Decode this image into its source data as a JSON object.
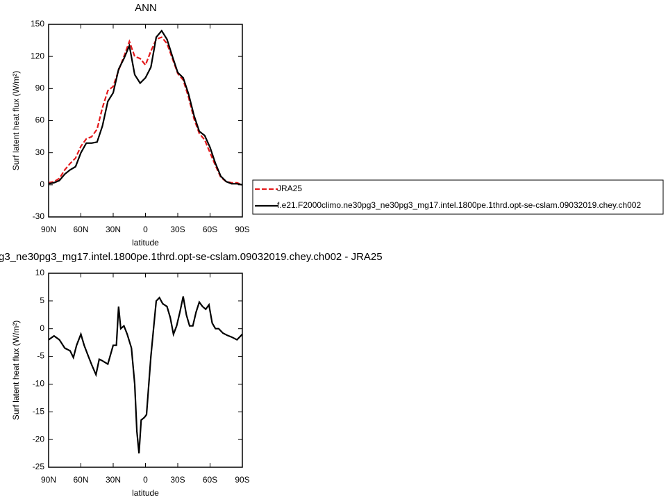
{
  "chart_data": [
    {
      "type": "line",
      "title": "ANN",
      "xlabel": "latitude",
      "ylabel": "Surf latent heat flux (W/m²)",
      "x": [
        90,
        85,
        80,
        75,
        70,
        65,
        60,
        55,
        50,
        45,
        40,
        35,
        30,
        25,
        20,
        15,
        10,
        5,
        0,
        -5,
        -10,
        -15,
        -20,
        -25,
        -30,
        -35,
        -40,
        -45,
        -50,
        -55,
        -60,
        -65,
        -70,
        -75,
        -80,
        -85,
        -90
      ],
      "series": [
        {
          "name": "JRA25",
          "color": "#e41a1c",
          "dashed": true,
          "values": [
            2,
            3,
            6,
            14,
            20,
            25,
            36,
            43,
            45,
            52,
            72,
            88,
            92,
            107,
            120,
            134,
            120,
            118,
            112,
            125,
            136,
            138,
            132,
            118,
            104,
            98,
            82,
            62,
            48,
            42,
            30,
            18,
            7,
            3,
            2,
            2,
            0
          ]
        },
        {
          "name": "f.e21.F2000climo.ne30pg3_ne30pg3_mg17.intel.1800pe.1thrd.opt-se-cslam.09032019.chey.ch002",
          "color": "#000000",
          "dashed": false,
          "values": [
            1,
            2,
            4,
            10,
            14,
            17,
            30,
            39,
            39,
            40,
            55,
            78,
            86,
            108,
            118,
            130,
            103,
            95,
            100,
            110,
            138,
            144,
            136,
            120,
            105,
            100,
            85,
            65,
            50,
            46,
            35,
            20,
            8,
            3,
            1,
            1,
            0
          ]
        }
      ],
      "xlim": [
        90,
        -90
      ],
      "xticks": [
        {
          "value": 90,
          "label": "90N"
        },
        {
          "value": 60,
          "label": "60N"
        },
        {
          "value": 30,
          "label": "30N"
        },
        0,
        {
          "value": -30,
          "label": "30S"
        },
        {
          "value": -60,
          "label": "60S"
        },
        {
          "value": -90,
          "label": "90S"
        }
      ],
      "ylim": [
        -30,
        150
      ],
      "yticks": [
        -30,
        0,
        30,
        60,
        90,
        120,
        150
      ],
      "legend": "outside-right"
    },
    {
      "type": "line",
      "title": "g3_ne30pg3_mg17.intel.1800pe.1thrd.opt-se-cslam.09032019.chey.ch002 - JRA25",
      "xlabel": "latitude",
      "ylabel": "Surf latent heat flux (W/m²)",
      "x": [
        90,
        85,
        80,
        75,
        70,
        67,
        64,
        60,
        57,
        53,
        50,
        46,
        43,
        40,
        35,
        30,
        27,
        25,
        23,
        20,
        17,
        13,
        10,
        8,
        6,
        4,
        1,
        -1,
        -5,
        -8,
        -10,
        -13,
        -16,
        -20,
        -23,
        -26,
        -29,
        -32,
        -35,
        -38,
        -41,
        -44,
        -47,
        -50,
        -53,
        -56,
        -59,
        -62,
        -65,
        -68,
        -72,
        -76,
        -80,
        -85,
        -90
      ],
      "series": [
        {
          "color": "#000000",
          "dashed": false,
          "values": [
            -2,
            -1.3,
            -2,
            -3.5,
            -4,
            -5.2,
            -3,
            -1,
            -3,
            -5,
            -6.5,
            -8.3,
            -5.5,
            -5.8,
            -6.4,
            -3,
            -3,
            4,
            0,
            0.5,
            -1,
            -3.5,
            -10,
            -18.5,
            -22.5,
            -16.5,
            -16,
            -15.5,
            -5,
            1,
            5,
            5.6,
            4.5,
            4,
            2,
            -1,
            0.5,
            3,
            5.8,
            2.5,
            0.5,
            0.5,
            3,
            4.8,
            4,
            3.5,
            4.3,
            1,
            0,
            0,
            -0.8,
            -1.2,
            -1.5,
            -2,
            -1
          ]
        }
      ],
      "xlim": [
        90,
        -90
      ],
      "xticks": [
        {
          "value": 90,
          "label": "90N"
        },
        {
          "value": 60,
          "label": "60N"
        },
        {
          "value": 30,
          "label": "30N"
        },
        0,
        {
          "value": -30,
          "label": "30S"
        },
        {
          "value": -60,
          "label": "60S"
        },
        {
          "value": -90,
          "label": "90S"
        }
      ],
      "ylim": [
        -25,
        10
      ],
      "yticks": [
        -25,
        -20,
        -15,
        -10,
        -5,
        0,
        5,
        10
      ]
    }
  ]
}
